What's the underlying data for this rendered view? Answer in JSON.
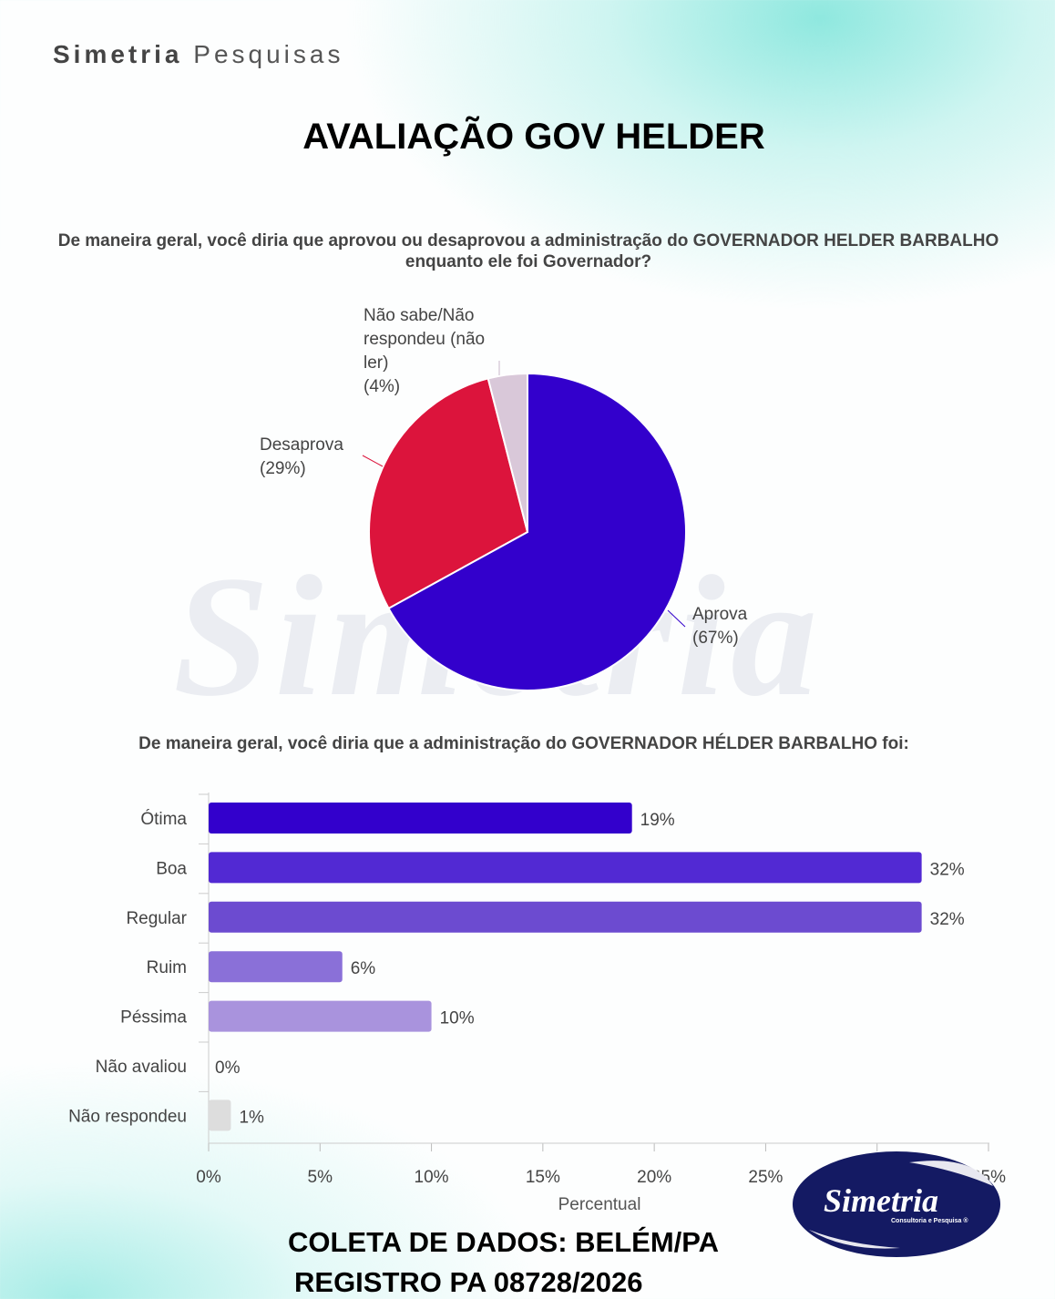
{
  "header": {
    "brand_bold": "Simetria",
    "brand_light": "Pesquisas",
    "title": "AVALIAÇÃO GOV HELDER"
  },
  "footer": {
    "line1": "COLETA DE DADOS: BELÉM/PA",
    "line2": "REGISTRO PA 08728/2026",
    "logo_text": "Simetria",
    "logo_sub": "Consultoria e Pesquisa"
  },
  "chart_data": [
    {
      "type": "pie",
      "title": "De maneira geral, você diria que aprovou ou desaprovou a administração do GOVERNADOR HELDER BARBALHO enquanto ele foi Governador?",
      "slices": [
        {
          "label": "Aprova",
          "pct_label": "(67%)",
          "value": 67,
          "color": "#3300cc"
        },
        {
          "label": "Desaprova",
          "pct_label": "(29%)",
          "value": 29,
          "color": "#dc143c"
        },
        {
          "label": "Não sabe/Não respondeu (não ler)",
          "label_lines": [
            "Não sabe/Não",
            "respondeu (não",
            "ler)"
          ],
          "pct_label": "(4%)",
          "value": 4,
          "color": "#d9c8d9"
        }
      ]
    },
    {
      "type": "bar",
      "title": "De maneira geral, você diria que a administração do GOVERNADOR HÉLDER BARBALHO foi:",
      "categories": [
        "Ótima",
        "Boa",
        "Regular",
        "Ruim",
        "Péssima",
        "Não avaliou",
        "Não respondeu"
      ],
      "values": [
        19,
        32,
        32,
        6,
        10,
        0,
        1
      ],
      "value_labels": [
        "19%",
        "32%",
        "32%",
        "6%",
        "10%",
        "0%",
        "1%"
      ],
      "colors": [
        "#3300cc",
        "#5229d3",
        "#6c4bd0",
        "#8a70d8",
        "#a993dd",
        "#cccccc",
        "#dddddd"
      ],
      "xlabel": "Percentual",
      "xlim": [
        0,
        35
      ],
      "xticks": [
        "0%",
        "5%",
        "10%",
        "15%",
        "20%",
        "25%",
        "30%",
        "35%"
      ]
    }
  ]
}
